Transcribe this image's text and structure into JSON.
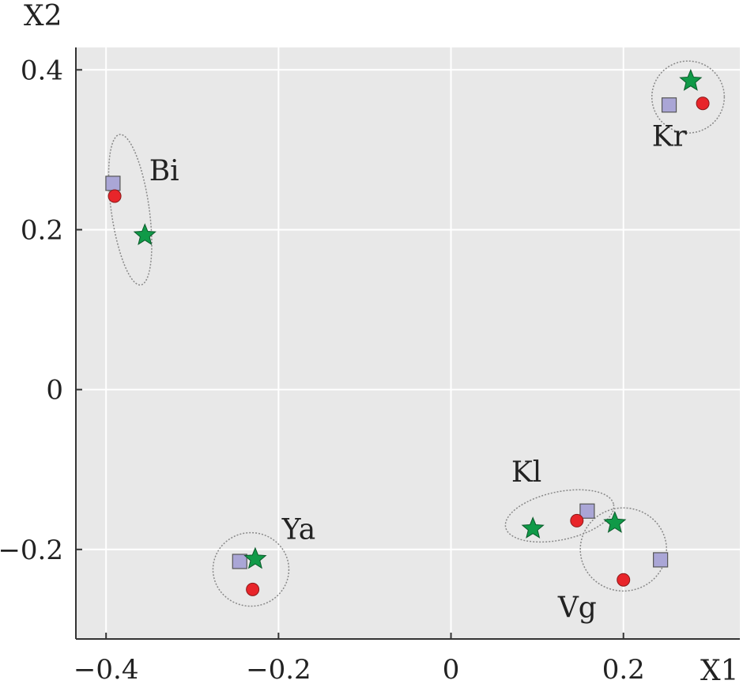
{
  "chart_data": {
    "type": "scatter",
    "title": "",
    "xlabel": "X1",
    "ylabel": "X2",
    "xlim": [
      -0.435,
      0.335
    ],
    "ylim": [
      -0.312,
      0.428
    ],
    "x_ticks": [
      {
        "value": -0.4,
        "label": "−0.4"
      },
      {
        "value": -0.2,
        "label": "−0.2"
      },
      {
        "value": 0,
        "label": "0"
      },
      {
        "value": 0.2,
        "label": "0.2"
      }
    ],
    "y_ticks": [
      {
        "value": 0.4,
        "label": "0.4"
      },
      {
        "value": 0.2,
        "label": "0.2"
      },
      {
        "value": 0,
        "label": "0"
      },
      {
        "value": -0.2,
        "label": "−0.2"
      }
    ],
    "grid": true,
    "colors": {
      "background": "#e8e8e8",
      "grid": "#ffffff",
      "axis": "#333333",
      "square": "#aaa6d6",
      "circle": "#e8252a",
      "star": "#109a48",
      "ellipse": "#888888"
    },
    "series": [
      {
        "name": "square",
        "marker": "square",
        "points": [
          {
            "x": -0.392,
            "y": 0.258
          },
          {
            "x": 0.253,
            "y": 0.356
          },
          {
            "x": -0.245,
            "y": -0.215
          },
          {
            "x": 0.158,
            "y": -0.152
          },
          {
            "x": 0.243,
            "y": -0.213
          }
        ]
      },
      {
        "name": "circle",
        "marker": "circle",
        "points": [
          {
            "x": -0.39,
            "y": 0.242
          },
          {
            "x": 0.292,
            "y": 0.358
          },
          {
            "x": -0.23,
            "y": -0.25
          },
          {
            "x": 0.146,
            "y": -0.164
          },
          {
            "x": 0.2,
            "y": -0.238
          }
        ]
      },
      {
        "name": "star",
        "marker": "star",
        "points": [
          {
            "x": -0.355,
            "y": 0.193
          },
          {
            "x": 0.278,
            "y": 0.386
          },
          {
            "x": -0.227,
            "y": -0.212
          },
          {
            "x": 0.095,
            "y": -0.174
          },
          {
            "x": 0.19,
            "y": -0.167
          }
        ]
      }
    ],
    "groups": [
      {
        "label": "Bi",
        "cx": -0.372,
        "cy": 0.225,
        "rx": 0.022,
        "ry": 0.095,
        "rot": -8,
        "label_x": -0.35,
        "label_y": 0.262
      },
      {
        "label": "Kr",
        "cx": 0.275,
        "cy": 0.366,
        "rx": 0.042,
        "ry": 0.045,
        "rot": 0,
        "label_x": 0.233,
        "label_y": 0.305
      },
      {
        "label": "Ya",
        "cx": -0.232,
        "cy": -0.225,
        "rx": 0.044,
        "ry": 0.046,
        "rot": 0,
        "label_x": -0.196,
        "label_y": -0.187
      },
      {
        "label": "Kl",
        "cx": 0.126,
        "cy": -0.158,
        "rx": 0.064,
        "ry": 0.03,
        "rot": -12,
        "label_x": 0.07,
        "label_y": -0.115
      },
      {
        "label": "Vg",
        "cx": 0.2,
        "cy": -0.2,
        "rx": 0.05,
        "ry": 0.052,
        "rot": 0,
        "label_x": 0.124,
        "label_y": -0.285
      }
    ]
  }
}
